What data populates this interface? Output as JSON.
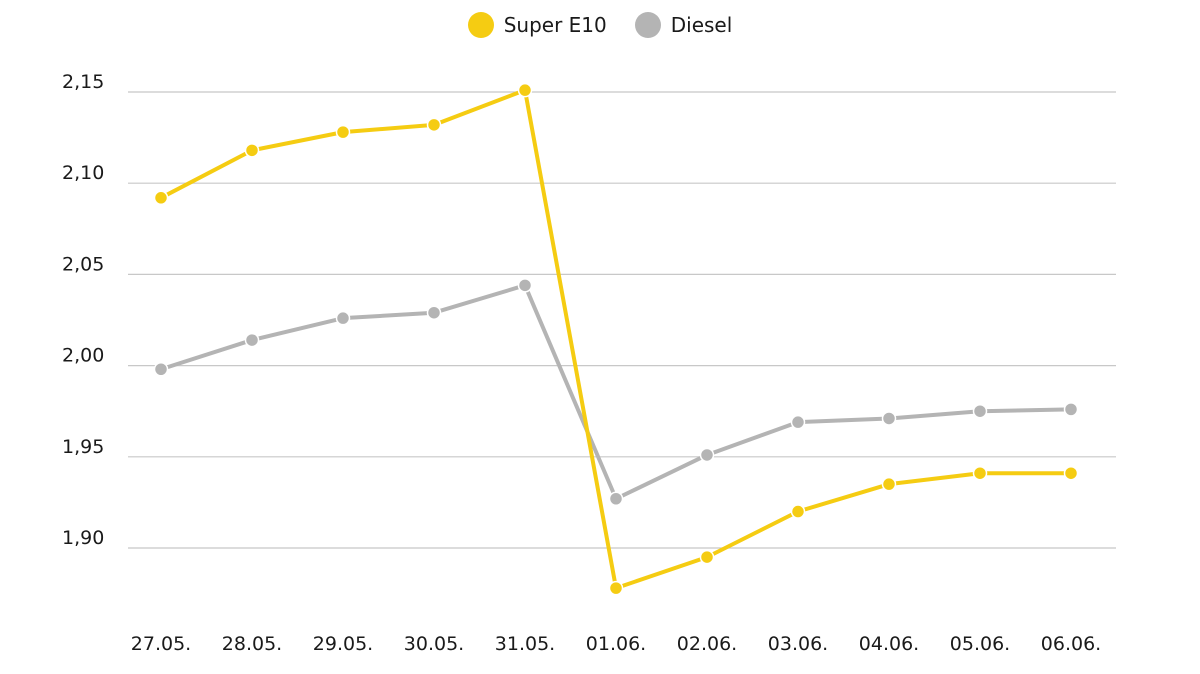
{
  "chart_data": {
    "type": "line",
    "categories": [
      "27.05.",
      "28.05.",
      "29.05.",
      "30.05.",
      "31.05.",
      "01.06.",
      "02.06.",
      "03.06.",
      "04.06.",
      "05.06.",
      "06.06."
    ],
    "series": [
      {
        "name": "Super E10",
        "color": "#f5cc12",
        "values": [
          2.092,
          2.118,
          2.128,
          2.132,
          2.151,
          1.878,
          1.895,
          1.92,
          1.935,
          1.941,
          1.941
        ]
      },
      {
        "name": "Diesel",
        "color": "#b4b4b4",
        "values": [
          1.998,
          2.014,
          2.026,
          2.029,
          2.044,
          1.927,
          1.951,
          1.969,
          1.971,
          1.975,
          1.976
        ]
      }
    ],
    "yticks": [
      "1,90",
      "1,95",
      "2,00",
      "2,05",
      "2,10",
      "2,15"
    ],
    "ytick_values": [
      1.9,
      1.95,
      2.0,
      2.05,
      2.1,
      2.15
    ],
    "ylim": [
      1.9,
      2.15
    ],
    "grid": true,
    "legend_position": "top-center"
  }
}
